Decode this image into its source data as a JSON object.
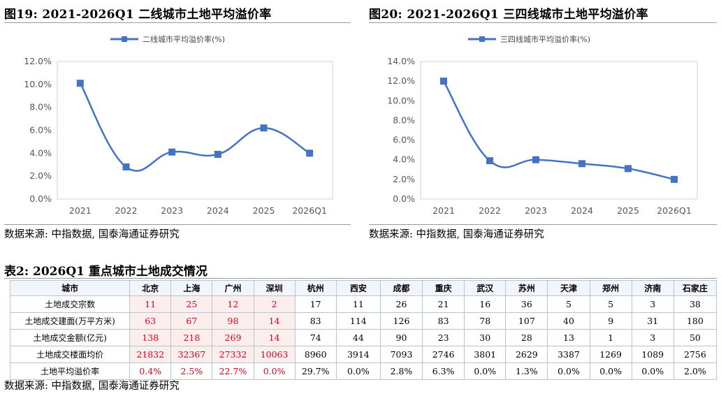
{
  "figure_left": {
    "title": "图19:  2021-2026Q1 二线城市土地平均溢价率",
    "source": "数据来源:  中指数据,  国泰海通证券研究"
  },
  "figure_right": {
    "title": "图20:  2021-2026Q1 三四线城市土地平均溢价率",
    "source": "数据来源:  中指数据,  国泰海通证券研究"
  },
  "chart_data": [
    {
      "type": "line",
      "categories": [
        "2021",
        "2022",
        "2023",
        "2024",
        "2025",
        "2026Q1"
      ],
      "series": [
        {
          "name": "二线城市平均溢价率(%)",
          "values": [
            10.1,
            2.8,
            4.1,
            3.9,
            6.2,
            4.0
          ]
        }
      ],
      "ylim": [
        0,
        12
      ],
      "yticks": [
        "0.0%",
        "2.0%",
        "4.0%",
        "6.0%",
        "8.0%",
        "10.0%",
        "12.0%"
      ],
      "grid": false,
      "legend": "top-center",
      "color": "#4472c4"
    },
    {
      "type": "line",
      "categories": [
        "2021",
        "2022",
        "2023",
        "2024",
        "2025",
        "2026Q1"
      ],
      "series": [
        {
          "name": "三四线城市平均溢价率(%)",
          "values": [
            12.0,
            3.9,
            4.0,
            3.6,
            3.1,
            2.0
          ]
        }
      ],
      "ylim": [
        0,
        14
      ],
      "yticks": [
        "0.0%",
        "2.0%",
        "4.0%",
        "6.0%",
        "8.0%",
        "10.0%",
        "12.0%",
        "14.0%"
      ],
      "grid": false,
      "legend": "top-center",
      "color": "#4472c4"
    }
  ],
  "table": {
    "title": "表2:  2026Q1 重点城市土地成交情况",
    "header": [
      "城市",
      "北京",
      "上海",
      "广州",
      "深圳",
      "杭州",
      "西安",
      "成都",
      "重庆",
      "武汉",
      "苏州",
      "天津",
      "郑州",
      "济南",
      "石家庄"
    ],
    "rows": [
      {
        "label": "土地成交宗数",
        "values": [
          "11",
          "25",
          "12",
          "2",
          "17",
          "11",
          "26",
          "21",
          "16",
          "36",
          "5",
          "5",
          "3",
          "38"
        ]
      },
      {
        "label": "土地成交建面(万平方米)",
        "values": [
          "63",
          "67",
          "98",
          "14",
          "83",
          "114",
          "126",
          "83",
          "78",
          "107",
          "40",
          "9",
          "31",
          "180"
        ]
      },
      {
        "label": "土地成交金额(亿元)",
        "values": [
          "138",
          "218",
          "269",
          "14",
          "74",
          "44",
          "90",
          "23",
          "30",
          "28",
          "13",
          "1",
          "3",
          "50"
        ]
      },
      {
        "label": "土地成交楼面均价",
        "values": [
          "21832",
          "32367",
          "27332",
          "10063",
          "8960",
          "3914",
          "7093",
          "2746",
          "3801",
          "2629",
          "3387",
          "1269",
          "1089",
          "2756"
        ]
      },
      {
        "label": "土地平均溢价率",
        "values": [
          "0.4%",
          "2.5%",
          "22.7%",
          "0.0%",
          "29.7%",
          "0.0%",
          "2.8%",
          "6.3%",
          "0.0%",
          "1.3%",
          "0.0%",
          "0.0%",
          "0.0%",
          "2.0%"
        ]
      }
    ],
    "highlight_color": "#d6001c",
    "source": "数据来源:  中指数据,  国泰海通证券研究"
  }
}
